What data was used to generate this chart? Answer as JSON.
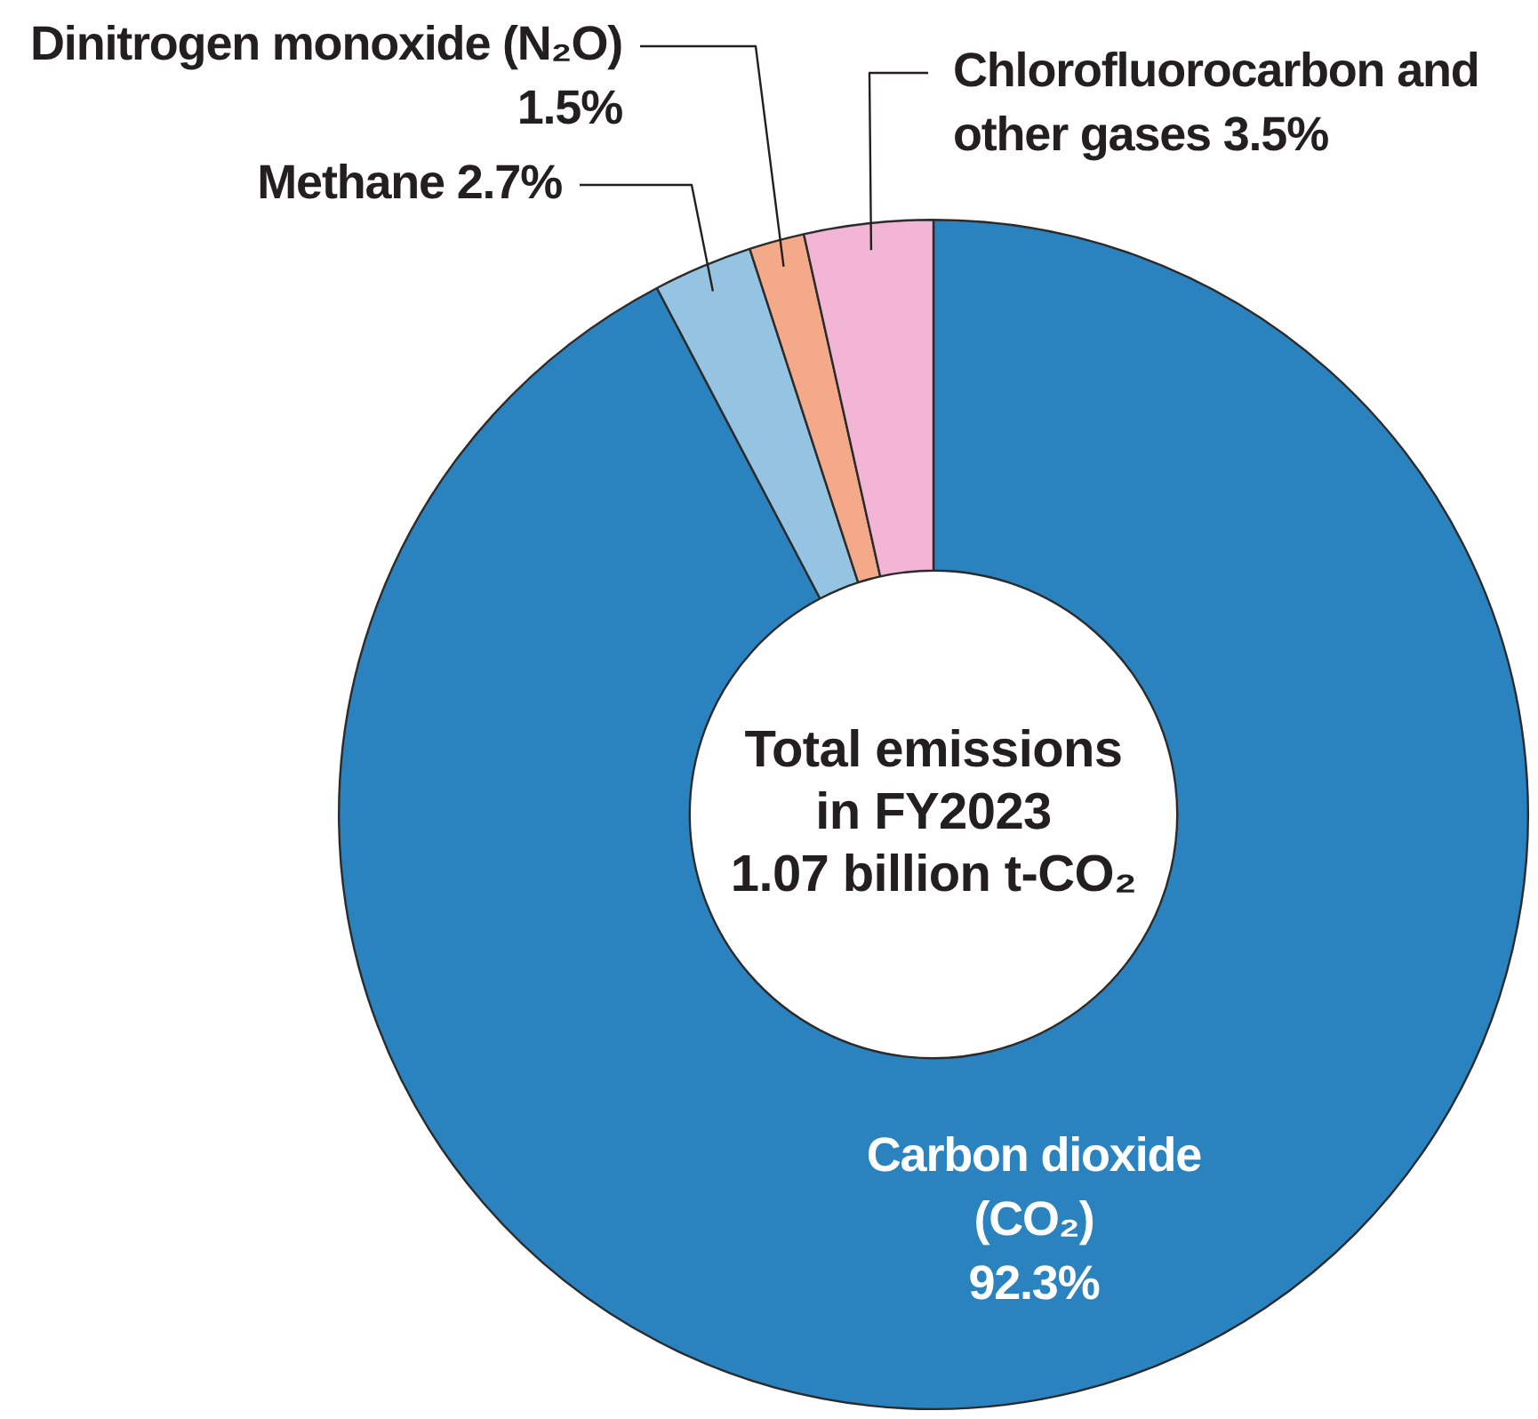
{
  "chart_data": {
    "type": "donut",
    "title": "Total emissions in FY2023",
    "subtitle": "1.07 billion t-CO₂",
    "categories": [
      "Carbon dioxide (CO₂)",
      "Methane",
      "Dinitrogen monoxide (N₂O)",
      "Chlorofluorocarbon and other gases"
    ],
    "values": [
      92.3,
      2.7,
      1.5,
      3.5
    ],
    "colors": [
      "#2a82bf",
      "#94c4e1",
      "#f4a988",
      "#f3b5d5"
    ],
    "value_labels": [
      "92.3%",
      "2.7%",
      "1.5%",
      "3.5%"
    ]
  }
}
